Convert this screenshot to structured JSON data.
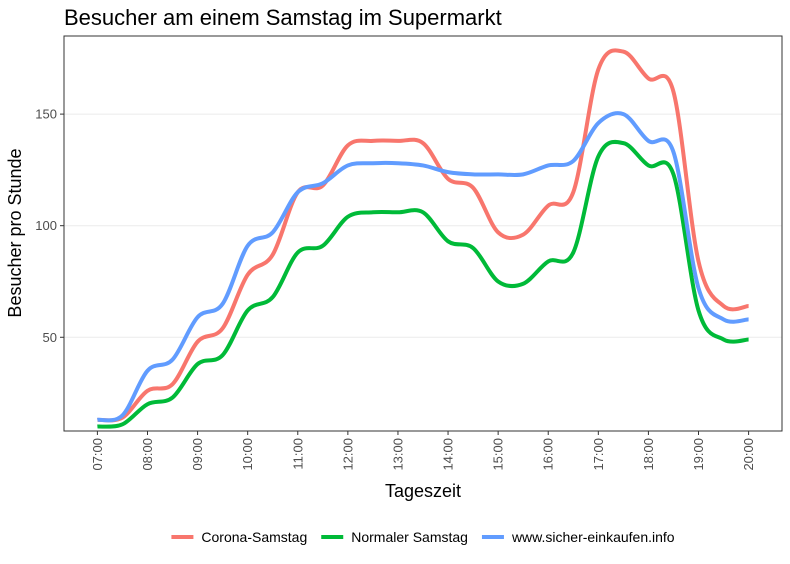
{
  "chart_data": {
    "type": "line",
    "title": "Besucher am einem Samstag im Supermarkt",
    "xlabel": "Tageszeit",
    "ylabel": "Besucher pro Stunde",
    "x_ticks": [
      "07:00",
      "08:00",
      "09:00",
      "10:00",
      "11:00",
      "12:00",
      "13:00",
      "14:00",
      "15:00",
      "16:00",
      "17:00",
      "18:00",
      "19:00",
      "20:00"
    ],
    "y_ticks": [
      50,
      100,
      150
    ],
    "xlim": [
      "06:20",
      "20:40"
    ],
    "ylim": [
      8,
      185
    ],
    "grid": true,
    "legend_position": "bottom",
    "x": [
      "07:00",
      "07:30",
      "08:00",
      "08:30",
      "09:00",
      "09:30",
      "10:00",
      "10:30",
      "11:00",
      "11:30",
      "12:00",
      "12:30",
      "13:00",
      "13:30",
      "14:00",
      "14:30",
      "15:00",
      "15:30",
      "16:00",
      "16:30",
      "17:00",
      "17:30",
      "18:00",
      "18:30",
      "19:00",
      "19:30",
      "20:00"
    ],
    "series": [
      {
        "name": "Corona-Samstag",
        "color": "#F8766D",
        "values": [
          13,
          14,
          26,
          29,
          48,
          54,
          78,
          87,
          115,
          118,
          136,
          138,
          138,
          137,
          121,
          117,
          97,
          96,
          109,
          115,
          170,
          178,
          166,
          160,
          84,
          64,
          64
        ]
      },
      {
        "name": "Normaler Samstag",
        "color": "#00BA38",
        "values": [
          10,
          11,
          20,
          23,
          38,
          42,
          62,
          68,
          88,
          91,
          104,
          106,
          106,
          106,
          93,
          90,
          75,
          74,
          84,
          88,
          131,
          137,
          127,
          123,
          62,
          49,
          49
        ]
      },
      {
        "name": "www.sicher-einkaufen.info",
        "color": "#619CFF",
        "values": [
          13,
          15,
          35,
          40,
          59,
          65,
          91,
          97,
          115,
          119,
          127,
          128,
          128,
          127,
          124,
          123,
          123,
          123,
          127,
          129,
          146,
          150,
          138,
          133,
          72,
          58,
          58
        ]
      }
    ]
  }
}
